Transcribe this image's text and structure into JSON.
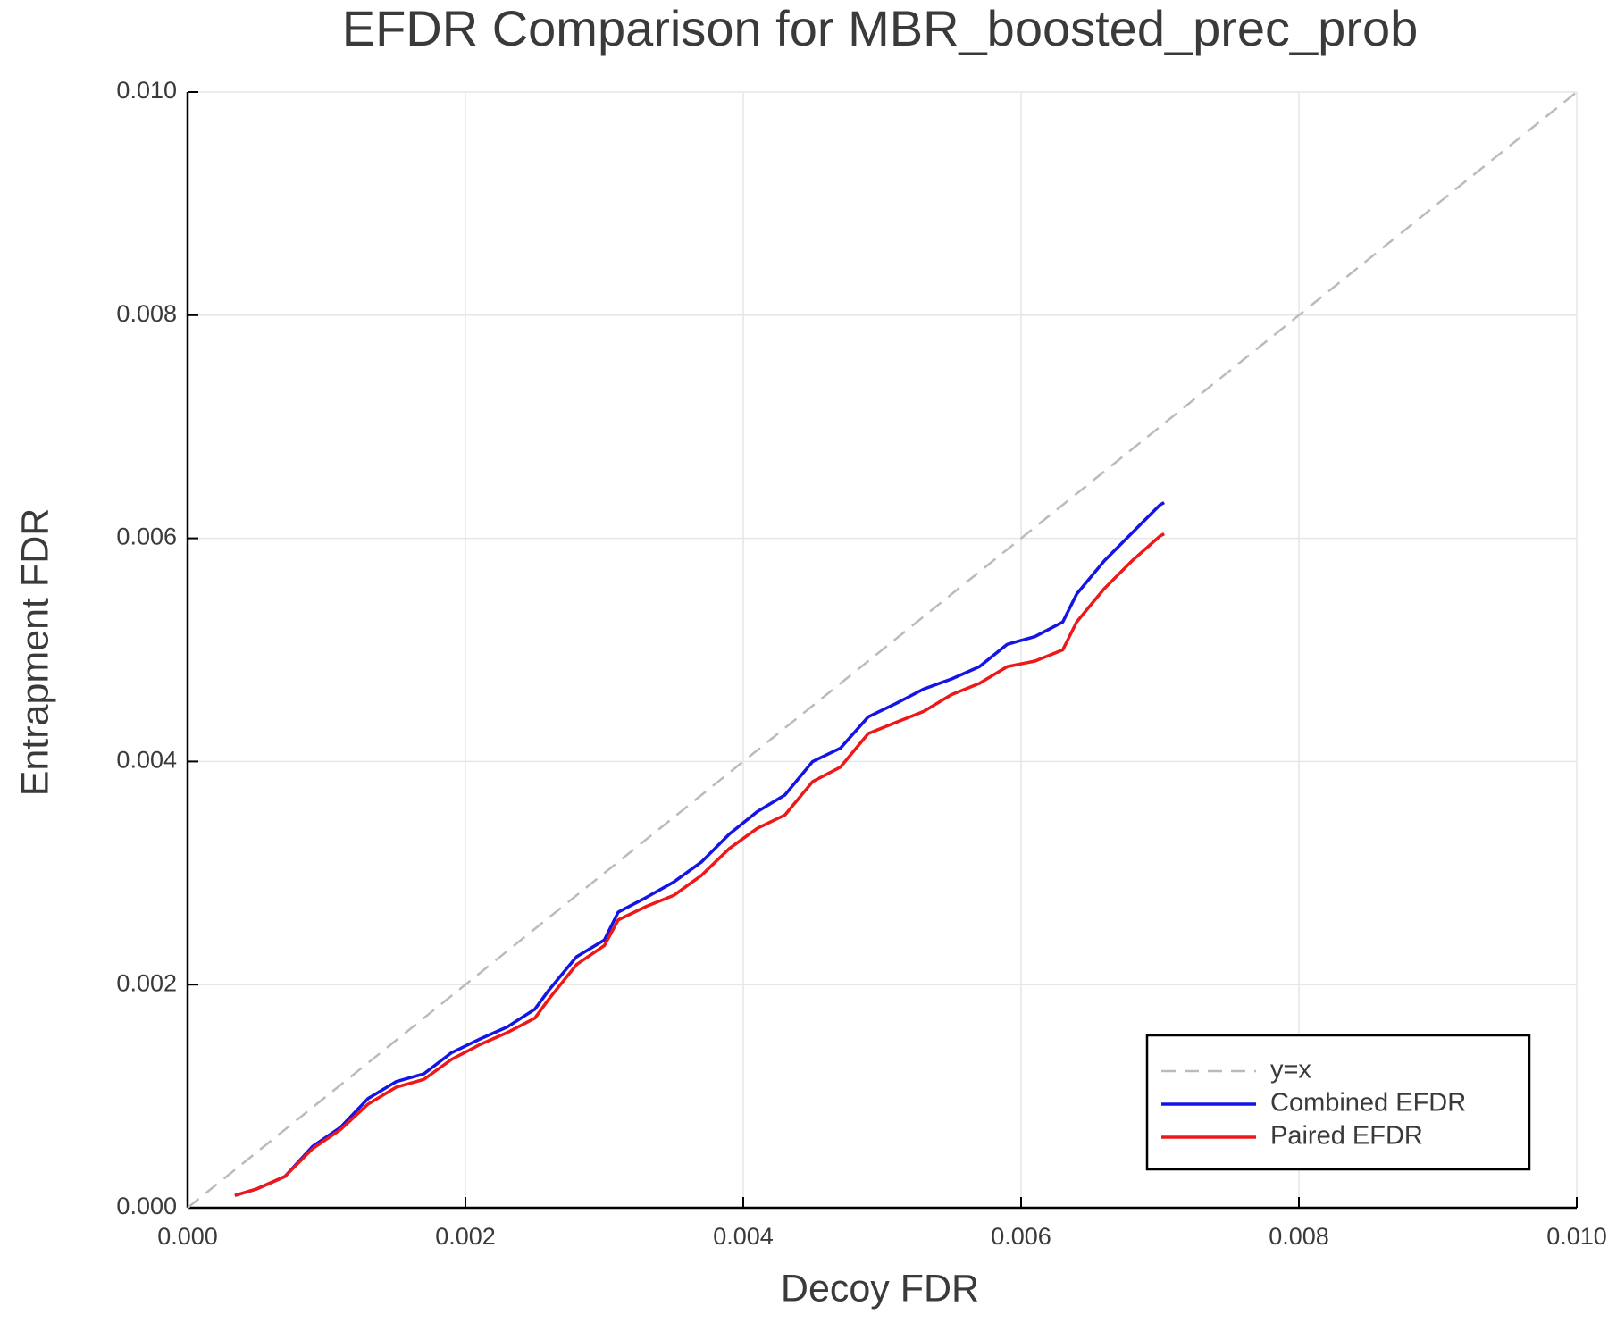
{
  "chart_data": {
    "type": "line",
    "title": "EFDR Comparison for MBR_boosted_prec_prob",
    "xlabel": "Decoy FDR",
    "ylabel": "Entrapment FDR",
    "xlim": [
      0,
      0.01
    ],
    "ylim": [
      0,
      0.01
    ],
    "xticks": [
      {
        "value": 0,
        "label": "0.000"
      },
      {
        "value": 0.002,
        "label": "0.002"
      },
      {
        "value": 0.004,
        "label": "0.004"
      },
      {
        "value": 0.006,
        "label": "0.006"
      },
      {
        "value": 0.008,
        "label": "0.008"
      },
      {
        "value": 0.01,
        "label": "0.010"
      }
    ],
    "yticks": [
      {
        "value": 0,
        "label": "0.000"
      },
      {
        "value": 0.002,
        "label": "0.002"
      },
      {
        "value": 0.004,
        "label": "0.004"
      },
      {
        "value": 0.006,
        "label": "0.006"
      },
      {
        "value": 0.008,
        "label": "0.008"
      },
      {
        "value": 0.01,
        "label": "0.010"
      }
    ],
    "grid": true,
    "legend": "lower right",
    "series": [
      {
        "name": "y=x",
        "color": "#bbbbbb",
        "dashed": true,
        "x": [
          0,
          0.01
        ],
        "values": [
          0,
          0.01
        ]
      },
      {
        "name": "Combined EFDR",
        "color": "#1414e6",
        "x": [
          0.00034,
          0.0005,
          0.0007,
          0.0009,
          0.0011,
          0.0013,
          0.0015,
          0.0017,
          0.0019,
          0.0021,
          0.0023,
          0.0025,
          0.0026,
          0.0028,
          0.003,
          0.0031,
          0.0033,
          0.0035,
          0.0037,
          0.0039,
          0.0041,
          0.0043,
          0.0045,
          0.0047,
          0.0049,
          0.0051,
          0.0053,
          0.0055,
          0.0057,
          0.0059,
          0.0061,
          0.0063,
          0.0064,
          0.0066,
          0.0068,
          0.007,
          0.00703
        ],
        "values": [
          0.00011,
          0.00017,
          0.00028,
          0.00055,
          0.00072,
          0.00098,
          0.00113,
          0.0012,
          0.00139,
          0.00151,
          0.00162,
          0.00178,
          0.00195,
          0.00225,
          0.0024,
          0.00265,
          0.00278,
          0.00292,
          0.0031,
          0.00335,
          0.00355,
          0.0037,
          0.004,
          0.00412,
          0.0044,
          0.00452,
          0.00465,
          0.00474,
          0.00485,
          0.00505,
          0.00512,
          0.00525,
          0.0055,
          0.0058,
          0.00605,
          0.0063,
          0.00632
        ]
      },
      {
        "name": "Paired EFDR",
        "color": "#ee1818",
        "x": [
          0.00034,
          0.0005,
          0.0007,
          0.0009,
          0.0011,
          0.0013,
          0.0015,
          0.0017,
          0.0019,
          0.0021,
          0.0023,
          0.0025,
          0.0026,
          0.0028,
          0.003,
          0.0031,
          0.0033,
          0.0035,
          0.0037,
          0.0039,
          0.0041,
          0.0043,
          0.0045,
          0.0047,
          0.0049,
          0.0051,
          0.0053,
          0.0055,
          0.0057,
          0.0059,
          0.0061,
          0.0063,
          0.0064,
          0.0066,
          0.0068,
          0.007,
          0.00703
        ],
        "values": [
          0.00011,
          0.00017,
          0.00028,
          0.00053,
          0.0007,
          0.00093,
          0.00108,
          0.00115,
          0.00133,
          0.00146,
          0.00157,
          0.0017,
          0.00187,
          0.00218,
          0.00235,
          0.00258,
          0.0027,
          0.0028,
          0.00298,
          0.00322,
          0.0034,
          0.00352,
          0.00382,
          0.00395,
          0.00425,
          0.00435,
          0.00445,
          0.0046,
          0.0047,
          0.00485,
          0.0049,
          0.005,
          0.00525,
          0.00555,
          0.0058,
          0.00602,
          0.00604
        ]
      }
    ]
  }
}
